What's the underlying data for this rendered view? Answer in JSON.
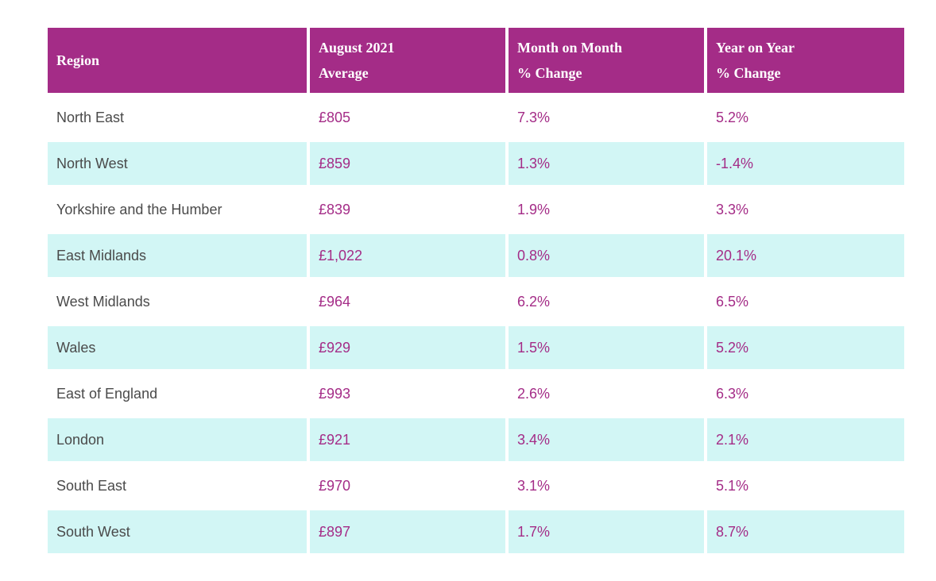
{
  "table": {
    "headers": [
      {
        "line1": "Region",
        "line2": ""
      },
      {
        "line1": "August 2021",
        "line2": "Average"
      },
      {
        "line1": "Month on Month",
        "line2": "% Change"
      },
      {
        "line1": "Year on Year",
        "line2": "% Change"
      }
    ],
    "rows": [
      {
        "region": "North East",
        "average": "£805",
        "mom": "7.3%",
        "yoy": "5.2%"
      },
      {
        "region": "North West",
        "average": "£859",
        "mom": "1.3%",
        "yoy": "-1.4%"
      },
      {
        "region": "Yorkshire and the Humber",
        "average": "£839",
        "mom": "1.9%",
        "yoy": "3.3%"
      },
      {
        "region": "East Midlands",
        "average": "£1,022",
        "mom": "0.8%",
        "yoy": "20.1%"
      },
      {
        "region": "West Midlands",
        "average": "£964",
        "mom": "6.2%",
        "yoy": "6.5%"
      },
      {
        "region": "Wales",
        "average": "£929",
        "mom": "1.5%",
        "yoy": "5.2%"
      },
      {
        "region": "East of England",
        "average": "£993",
        "mom": "2.6%",
        "yoy": "6.3%"
      },
      {
        "region": "London",
        "average": "£921",
        "mom": "3.4%",
        "yoy": "2.1%"
      },
      {
        "region": "South East",
        "average": "£970",
        "mom": "3.1%",
        "yoy": "5.1%"
      },
      {
        "region": "South West",
        "average": "£897",
        "mom": "1.7%",
        "yoy": "8.7%"
      }
    ]
  },
  "colors": {
    "header_bg": "#a42c87",
    "header_text": "#ffffff",
    "value_text": "#a42c87",
    "region_text": "#4a4a4a",
    "alt_row_bg": "#d2f6f5"
  }
}
